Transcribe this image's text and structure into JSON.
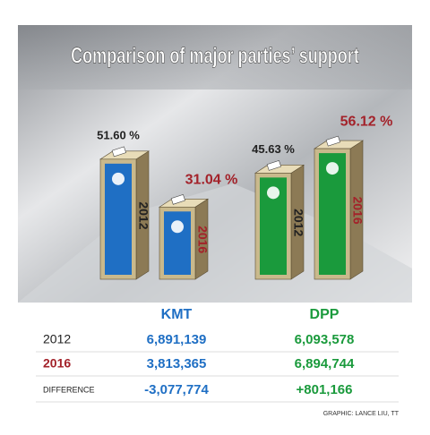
{
  "chart_data": {
    "type": "bar",
    "title": "Comparison of major parties’ support",
    "categories": [
      "KMT",
      "DPP"
    ],
    "category_colors": [
      "#1f6fc4",
      "#1a9a3c"
    ],
    "series": [
      {
        "name": "2012",
        "color": "#222222",
        "values": [
          51.6,
          45.63
        ],
        "value_labels": [
          "51.60 %",
          "45.63 %"
        ]
      },
      {
        "name": "2016",
        "color": "#a3222a",
        "values": [
          31.04,
          56.12
        ],
        "value_labels": [
          "31.04 %",
          "56.12 %"
        ]
      }
    ],
    "table": {
      "rows": [
        [
          "2012",
          "6,891,139",
          "6,093,578"
        ],
        [
          "2016",
          "3,813,365",
          "6,894,744"
        ],
        [
          "DIFFERENCE",
          "-3,077,774",
          "+801,166"
        ]
      ]
    },
    "credit": "GRAPHIC: LANCE LIU, TT"
  }
}
